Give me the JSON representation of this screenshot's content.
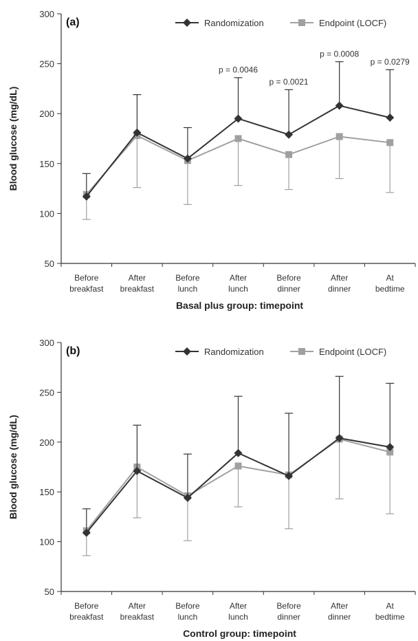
{
  "chart_data": [
    {
      "type": "line",
      "panel_label": "(a)",
      "xlabel": "Basal plus group: timepoint",
      "ylabel": "Blood glucose (mg/dL)",
      "ylim": [
        50,
        300
      ],
      "yticks": [
        50,
        100,
        150,
        200,
        250,
        300
      ],
      "categories": [
        "Before|breakfast",
        "After|breakfast",
        "Before|lunch",
        "After|lunch",
        "Before|dinner",
        "After|dinner",
        "At|bedtime"
      ],
      "legend_position": "top-right",
      "series": [
        {
          "name": "Randomization",
          "color": "#333333",
          "marker": "diamond",
          "values": [
            117,
            181,
            155,
            195,
            179,
            208,
            196
          ],
          "error_upper": [
            140,
            219,
            186,
            236,
            224,
            252,
            244
          ]
        },
        {
          "name": "Endpoint (LOCF)",
          "color": "#a0a0a0",
          "marker": "square",
          "values": [
            119,
            178,
            153,
            175,
            159,
            177,
            171
          ],
          "error_lower": [
            94,
            126,
            109,
            128,
            124,
            135,
            121
          ]
        }
      ],
      "annotations": [
        {
          "category_index": 3,
          "y": 241,
          "text": "p = 0.0046"
        },
        {
          "category_index": 4,
          "y": 229,
          "text": "p = 0.0021"
        },
        {
          "category_index": 5,
          "y": 257,
          "text": "p = 0.0008"
        },
        {
          "category_index": 6,
          "y": 249,
          "text": "p = 0.0279"
        }
      ]
    },
    {
      "type": "line",
      "panel_label": "(b)",
      "xlabel": "Control group: timepoint",
      "ylabel": "Blood glucose (mg/dL)",
      "ylim": [
        50,
        300
      ],
      "yticks": [
        50,
        100,
        150,
        200,
        250,
        300
      ],
      "categories": [
        "Before|breakfast",
        "After|breakfast",
        "Before|lunch",
        "After|lunch",
        "Before|dinner",
        "After|dinner",
        "At|bedtime"
      ],
      "legend_position": "top-right",
      "series": [
        {
          "name": "Randomization",
          "color": "#333333",
          "marker": "diamond",
          "values": [
            109,
            171,
            144,
            189,
            166,
            204,
            195
          ],
          "error_upper": [
            133,
            217,
            188,
            246,
            229,
            266,
            259
          ]
        },
        {
          "name": "Endpoint (LOCF)",
          "color": "#a0a0a0",
          "marker": "square",
          "values": [
            111,
            175,
            146,
            176,
            167,
            203,
            190
          ],
          "error_lower": [
            86,
            124,
            101,
            135,
            113,
            143,
            128
          ]
        }
      ],
      "annotations": []
    }
  ]
}
